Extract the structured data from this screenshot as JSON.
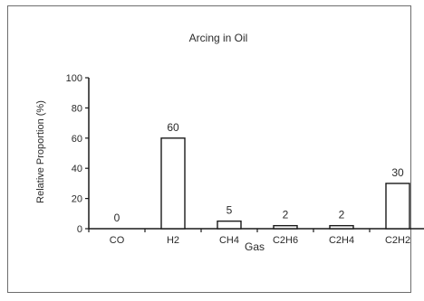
{
  "chart_data": {
    "type": "bar",
    "title": "Arcing in Oil",
    "xlabel": "Gas",
    "ylabel": "Relative Proportion (%)",
    "categories": [
      "CO",
      "H2",
      "CH4",
      "C2H6",
      "C2H4",
      "C2H2"
    ],
    "values": [
      0,
      60,
      5,
      2,
      2,
      30
    ],
    "ylim": [
      0,
      100
    ],
    "yticks": [
      0,
      20,
      40,
      60,
      80,
      100
    ],
    "ytick_labels": [
      "0",
      "20",
      "40",
      "60",
      "80",
      "100"
    ],
    "data_labels": [
      "0",
      "60",
      "5",
      "2",
      "2",
      "30"
    ],
    "grid": false,
    "legend": "none",
    "colors": {
      "bar_fill": "#ffffff",
      "bar_stroke": "#1a1a1a",
      "axis": "#1a1a1a",
      "frame": "#6d6d6d"
    }
  }
}
